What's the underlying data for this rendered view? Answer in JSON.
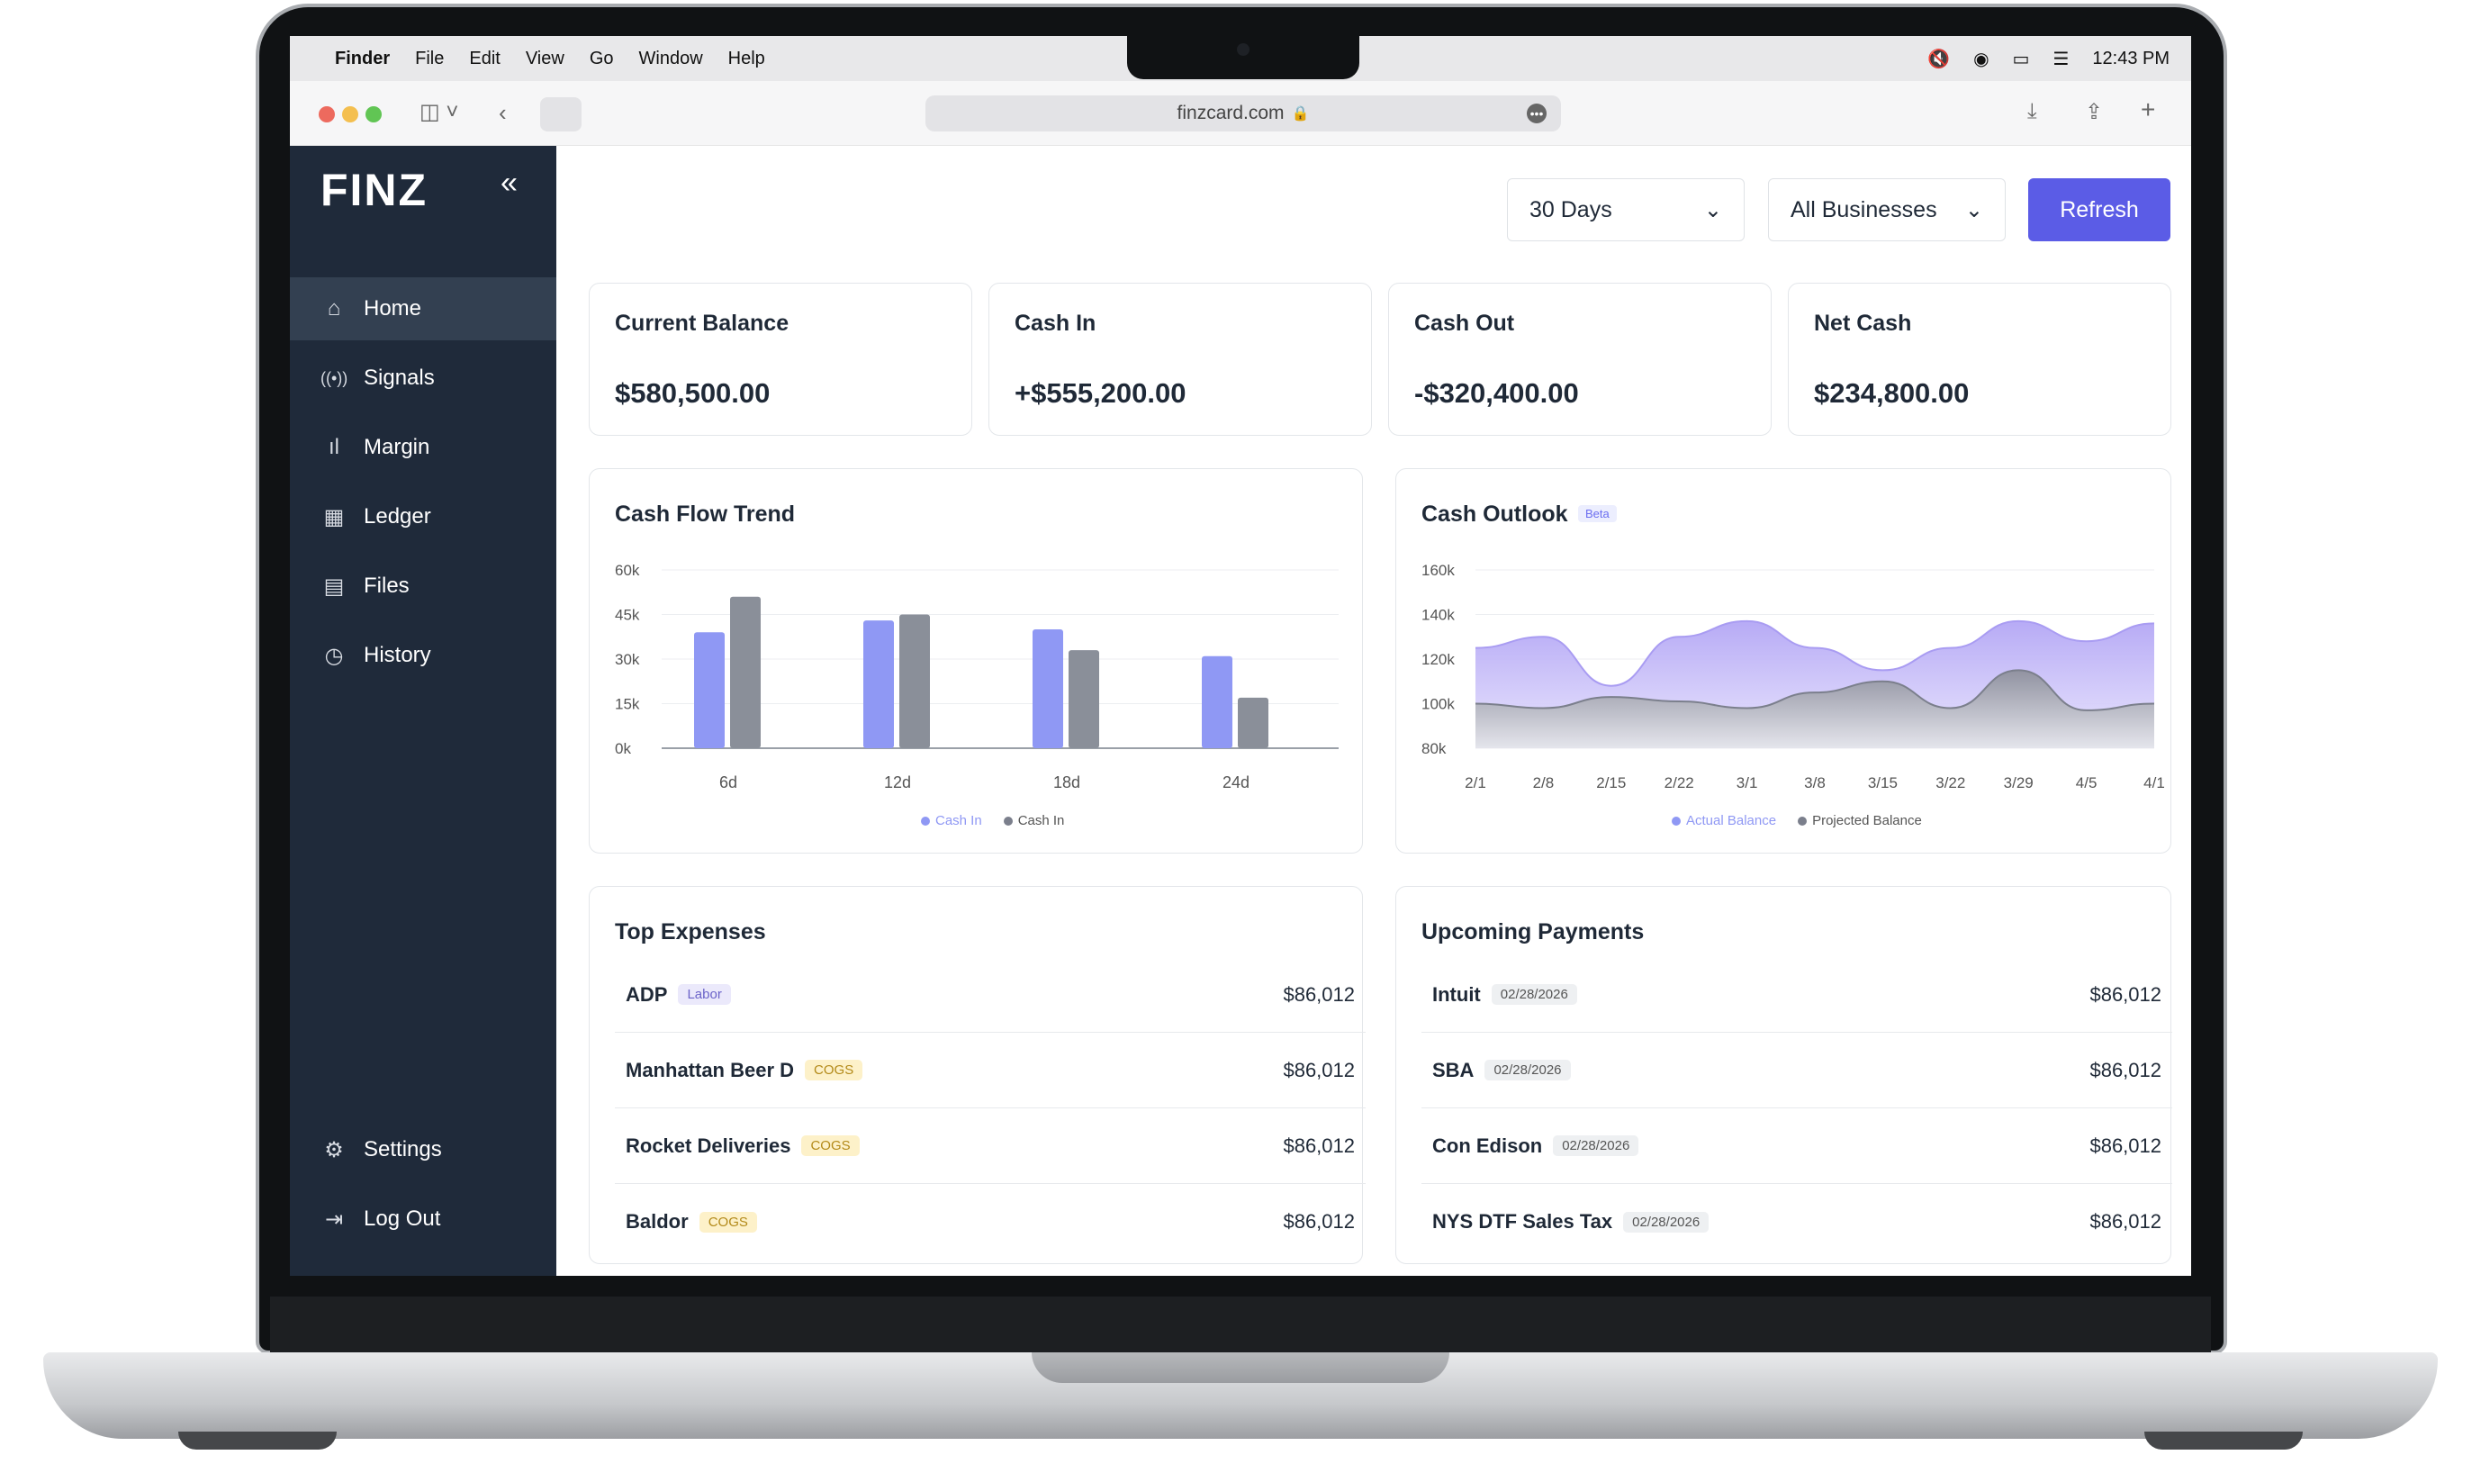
{
  "menubar": {
    "app": "Finder",
    "items": [
      "File",
      "Edit",
      "View",
      "Go",
      "Window",
      "Help"
    ],
    "time": "12:43 PM"
  },
  "browser": {
    "url": "finzcard.com"
  },
  "sidebar": {
    "logo": "FINZ",
    "collapse_icon": "«",
    "items": [
      {
        "label": "Home",
        "icon": "home-icon",
        "active": true
      },
      {
        "label": "Signals",
        "icon": "signal-icon"
      },
      {
        "label": "Margin",
        "icon": "bar-chart-icon"
      },
      {
        "label": "Ledger",
        "icon": "table-icon"
      },
      {
        "label": "Files",
        "icon": "file-icon"
      },
      {
        "label": "History",
        "icon": "clock-icon"
      }
    ],
    "bottom": [
      {
        "label": "Settings",
        "icon": "gear-icon"
      },
      {
        "label": "Log Out",
        "icon": "logout-icon"
      }
    ]
  },
  "toolbar": {
    "period": "30 Days",
    "business": "All Businesses",
    "refresh_label": "Refresh"
  },
  "stats": [
    {
      "label": "Current Balance",
      "value": "$580,500.00"
    },
    {
      "label": "Cash In",
      "value": "+$555,200.00"
    },
    {
      "label": "Cash Out",
      "value": "-$320,400.00"
    },
    {
      "label": "Net Cash",
      "value": "$234,800.00"
    }
  ],
  "cash_flow": {
    "title": "Cash Flow Trend",
    "legend": [
      "Cash In",
      "Cash In"
    ]
  },
  "cash_outlook": {
    "title": "Cash Outlook",
    "badge": "Beta",
    "legend": [
      "Actual Balance",
      "Projected Balance"
    ]
  },
  "chart_data": [
    {
      "type": "bar",
      "title": "Cash Flow Trend",
      "categories": [
        "6d",
        "12d",
        "18d",
        "24d"
      ],
      "yticks": [
        "60k",
        "45k",
        "30k",
        "15k",
        "0k"
      ],
      "ylim": [
        0,
        60000
      ],
      "series": [
        {
          "name": "Cash In",
          "color": "#8f98f4",
          "values": [
            39000,
            43000,
            40000,
            31000
          ]
        },
        {
          "name": "Cash In",
          "color": "#8a8f99",
          "values": [
            51000,
            45000,
            33000,
            17000
          ]
        }
      ],
      "legend": "bottom"
    },
    {
      "type": "area",
      "title": "Cash Outlook",
      "categories": [
        "2/1",
        "2/8",
        "2/15",
        "2/22",
        "3/1",
        "3/8",
        "3/15",
        "3/22",
        "3/29",
        "4/5",
        "4/1"
      ],
      "yticks": [
        "160k",
        "140k",
        "120k",
        "100k",
        "80k"
      ],
      "ylim": [
        80000,
        160000
      ],
      "series": [
        {
          "name": "Actual Balance",
          "color": "#a99cf2",
          "values": [
            125000,
            130000,
            108000,
            130000,
            137000,
            125000,
            115000,
            125000,
            137000,
            128000,
            136000
          ]
        },
        {
          "name": "Projected Balance",
          "color": "#7b7f8c",
          "values": [
            100000,
            98000,
            103000,
            101000,
            98000,
            105000,
            110000,
            98000,
            115000,
            97000,
            100000
          ]
        }
      ],
      "legend": "bottom"
    }
  ],
  "expenses": {
    "title": "Top Expenses",
    "rows": [
      {
        "name": "ADP",
        "tag": "Labor",
        "amount": "$86,012"
      },
      {
        "name": "Manhattan Beer D",
        "tag": "COGS",
        "amount": "$86,012"
      },
      {
        "name": "Rocket Deliveries",
        "tag": "COGS",
        "amount": "$86,012"
      },
      {
        "name": "Baldor",
        "tag": "COGS",
        "amount": "$86,012"
      }
    ]
  },
  "payments": {
    "title": "Upcoming Payments",
    "rows": [
      {
        "name": "Intuit",
        "date": "02/28/2026",
        "amount": "$86,012"
      },
      {
        "name": "SBA",
        "date": "02/28/2026",
        "amount": "$86,012"
      },
      {
        "name": "Con Edison",
        "date": "02/28/2026",
        "amount": "$86,012"
      },
      {
        "name": "NYS DTF Sales Tax",
        "date": "02/28/2026",
        "amount": "$86,012"
      }
    ]
  }
}
